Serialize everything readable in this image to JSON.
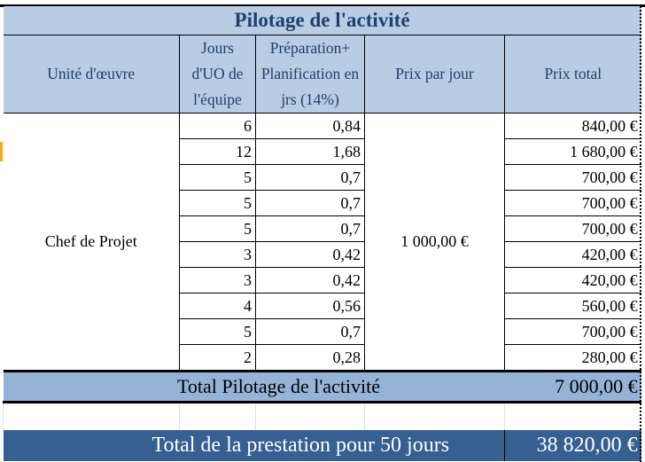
{
  "title": "Pilotage de l'activité",
  "headers": {
    "unit": "Unité d'œuvre",
    "jours": "Jours d'UO de l'équipe",
    "prep": "Préparation+ Planification en jrs (14%)",
    "ppj": "Prix par jour",
    "total": "Prix total"
  },
  "unit": "Chef de Projet",
  "price_per_day": "1 000,00 €",
  "rows": [
    {
      "jours": "6",
      "prep": "0,84",
      "total": "840,00 €"
    },
    {
      "jours": "12",
      "prep": "1,68",
      "total": "1 680,00 €"
    },
    {
      "jours": "5",
      "prep": "0,7",
      "total": "700,00 €"
    },
    {
      "jours": "5",
      "prep": "0,7",
      "total": "700,00 €"
    },
    {
      "jours": "5",
      "prep": "0,7",
      "total": "700,00 €"
    },
    {
      "jours": "3",
      "prep": "0,42",
      "total": "420,00 €"
    },
    {
      "jours": "3",
      "prep": "0,42",
      "total": "420,00 €"
    },
    {
      "jours": "4",
      "prep": "0,56",
      "total": "560,00 €"
    },
    {
      "jours": "5",
      "prep": "0,7",
      "total": "700,00 €"
    },
    {
      "jours": "2",
      "prep": "0,28",
      "total": "280,00 €"
    }
  ],
  "subtotal": {
    "label": "Total Pilotage de l'activité",
    "value": "7 000,00 €"
  },
  "grand_total": {
    "label": "Total de la prestation pour 50 jours",
    "value": "38 820,00 €"
  }
}
